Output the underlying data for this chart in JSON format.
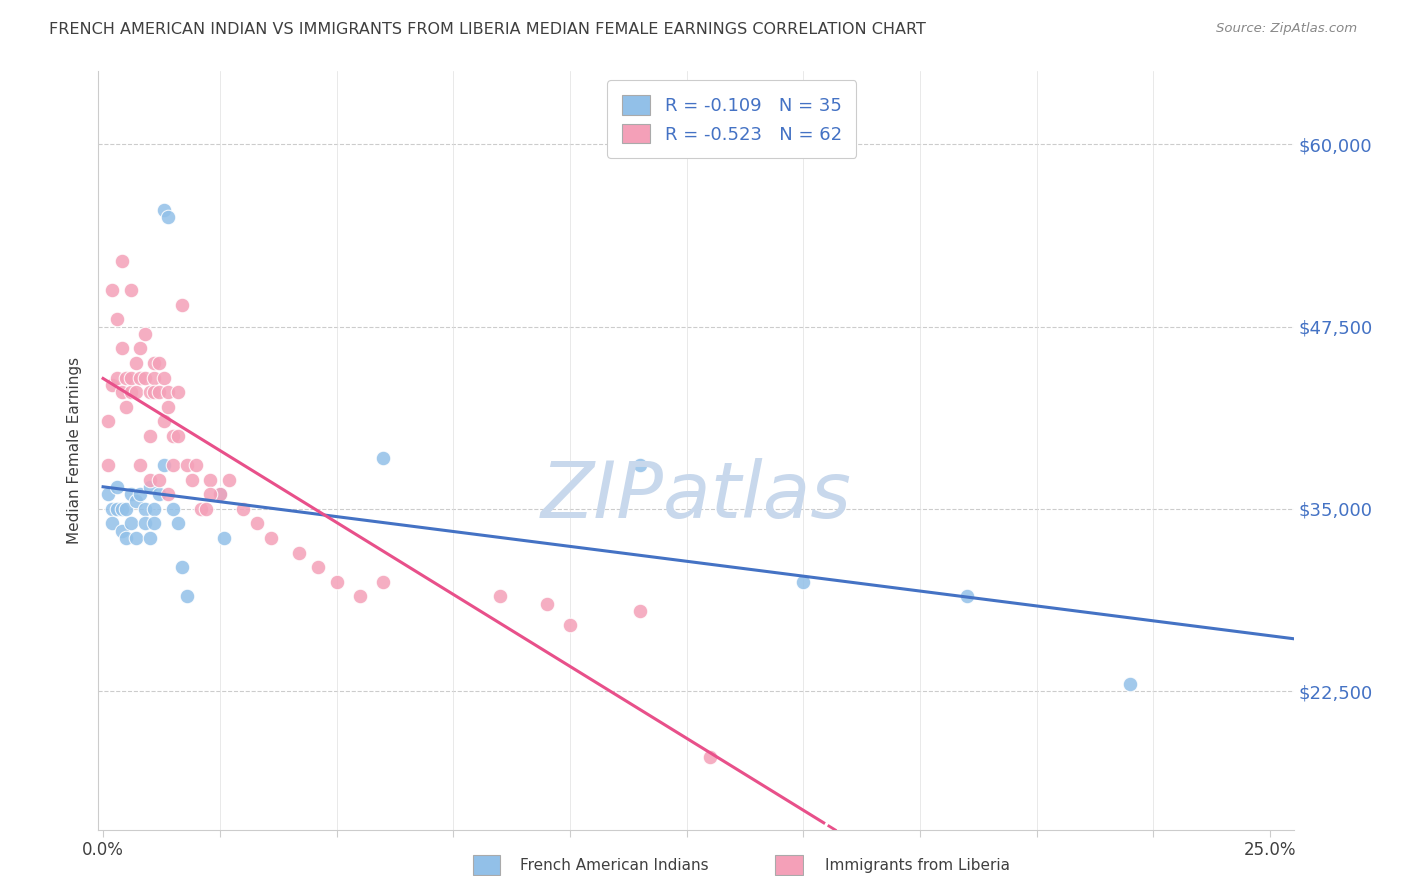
{
  "title": "FRENCH AMERICAN INDIAN VS IMMIGRANTS FROM LIBERIA MEDIAN FEMALE EARNINGS CORRELATION CHART",
  "source": "Source: ZipAtlas.com",
  "ylabel": "Median Female Earnings",
  "y_tick_labels": [
    "$22,500",
    "$35,000",
    "$47,500",
    "$60,000"
  ],
  "y_tick_values": [
    22500,
    35000,
    47500,
    60000
  ],
  "y_min": 13000,
  "y_max": 65000,
  "x_min": -0.001,
  "x_max": 0.255,
  "legend_label1": "French American Indians",
  "legend_label2": "Immigrants from Liberia",
  "blue_color": "#92C0E8",
  "pink_color": "#F4A0B8",
  "blue_line_color": "#4472C4",
  "pink_line_color": "#E8508A",
  "title_color": "#3F3F3F",
  "source_color": "#888888",
  "axis_label_color": "#3F3F3F",
  "right_tick_color": "#4472C4",
  "watermark_color": "#C8D8EC",
  "blue_scatter_x": [
    0.001,
    0.002,
    0.002,
    0.003,
    0.003,
    0.004,
    0.004,
    0.005,
    0.005,
    0.006,
    0.006,
    0.007,
    0.007,
    0.008,
    0.009,
    0.009,
    0.01,
    0.01,
    0.011,
    0.011,
    0.012,
    0.013,
    0.013,
    0.014,
    0.015,
    0.016,
    0.017,
    0.018,
    0.025,
    0.026,
    0.06,
    0.15,
    0.185,
    0.115,
    0.22
  ],
  "blue_scatter_y": [
    36000,
    35000,
    34000,
    36500,
    35000,
    33500,
    35000,
    35000,
    33000,
    36000,
    34000,
    35500,
    33000,
    36000,
    35000,
    34000,
    36500,
    33000,
    35000,
    34000,
    36000,
    38000,
    55500,
    55000,
    35000,
    34000,
    31000,
    29000,
    36000,
    33000,
    38500,
    30000,
    29000,
    38000,
    23000
  ],
  "pink_scatter_x": [
    0.001,
    0.001,
    0.002,
    0.002,
    0.003,
    0.003,
    0.004,
    0.004,
    0.005,
    0.005,
    0.006,
    0.006,
    0.007,
    0.007,
    0.008,
    0.008,
    0.009,
    0.009,
    0.01,
    0.01,
    0.011,
    0.011,
    0.011,
    0.012,
    0.012,
    0.013,
    0.013,
    0.014,
    0.014,
    0.015,
    0.015,
    0.016,
    0.016,
    0.017,
    0.018,
    0.019,
    0.02,
    0.021,
    0.022,
    0.023,
    0.025,
    0.027,
    0.03,
    0.033,
    0.036,
    0.042,
    0.046,
    0.05,
    0.055,
    0.06,
    0.085,
    0.095,
    0.1,
    0.115,
    0.13,
    0.023,
    0.004,
    0.008,
    0.006,
    0.01,
    0.012,
    0.014
  ],
  "pink_scatter_y": [
    41000,
    38000,
    43500,
    50000,
    44000,
    48000,
    46000,
    43000,
    42000,
    44000,
    43000,
    44000,
    45000,
    43000,
    44000,
    46000,
    47000,
    44000,
    40000,
    43000,
    44000,
    43000,
    45000,
    45000,
    43000,
    44000,
    41000,
    43000,
    42000,
    40000,
    38000,
    43000,
    40000,
    49000,
    38000,
    37000,
    38000,
    35000,
    35000,
    37000,
    36000,
    37000,
    35000,
    34000,
    33000,
    32000,
    31000,
    30000,
    29000,
    30000,
    29000,
    28500,
    27000,
    28000,
    18000,
    36000,
    52000,
    38000,
    50000,
    37000,
    37000,
    36000
  ]
}
